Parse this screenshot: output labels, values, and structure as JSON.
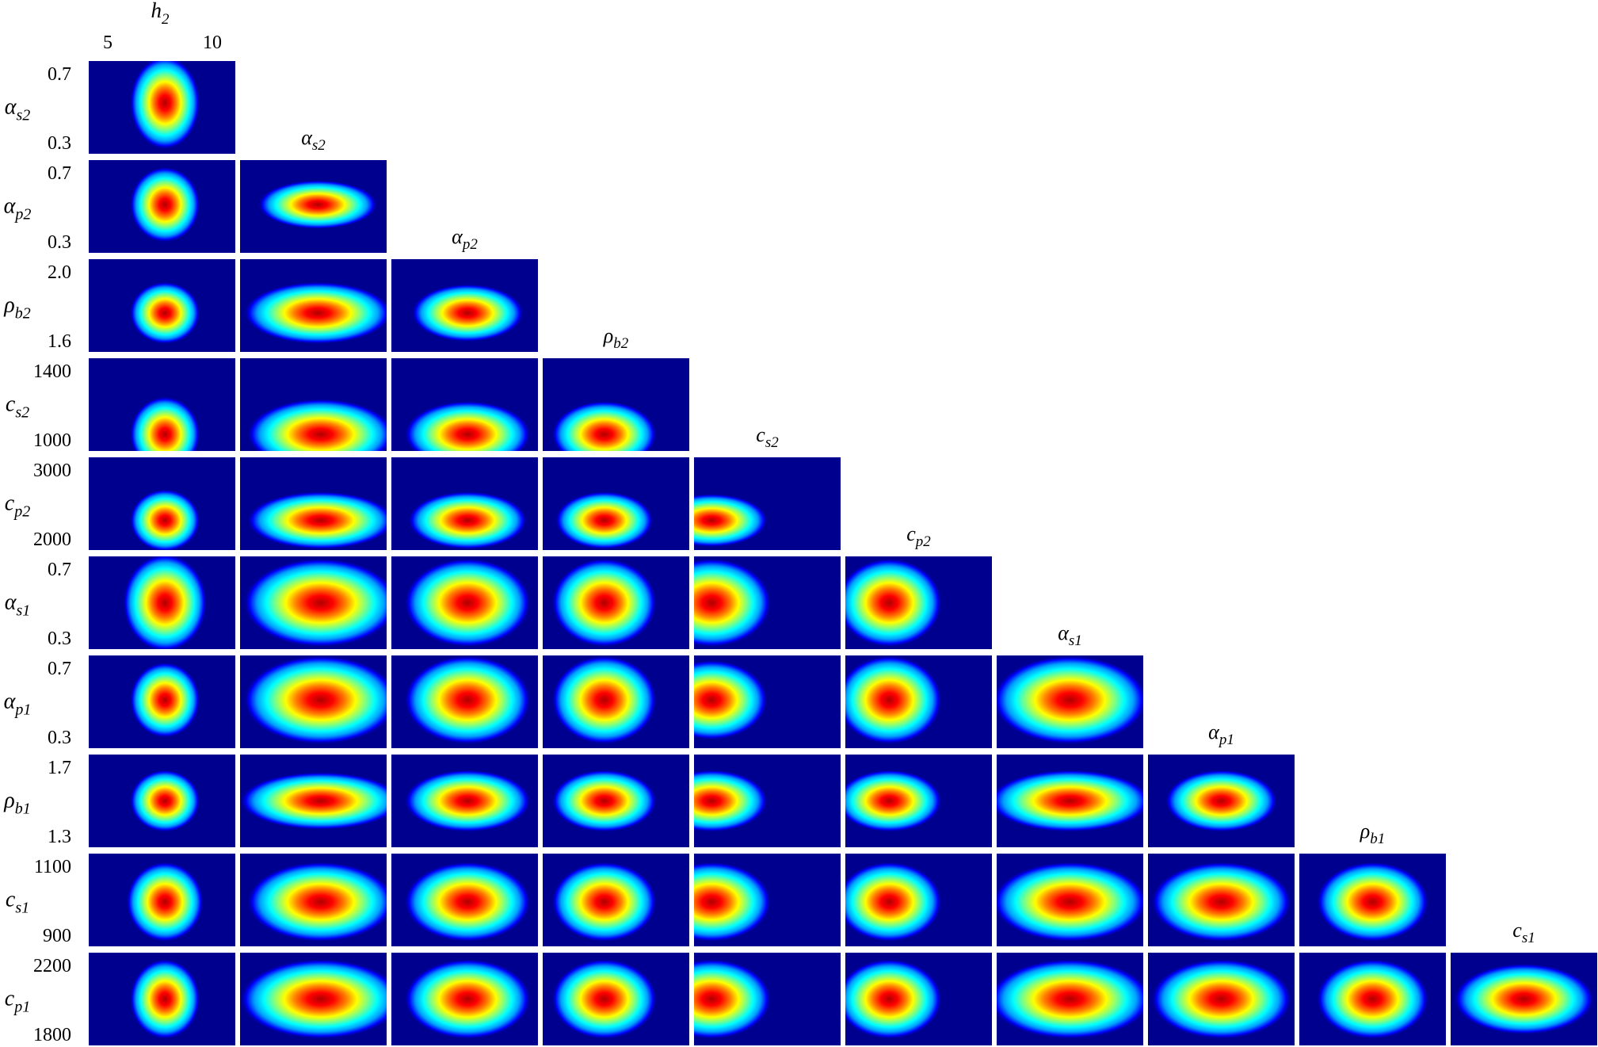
{
  "chart_data": {
    "type": "heatmap",
    "title": "",
    "layout": "lower-triangular corner plot of 2D posterior densities",
    "colormap": [
      "#00008f",
      "#0000ff",
      "#00a0ff",
      "#00ffff",
      "#80ff80",
      "#ffff00",
      "#ff8000",
      "#ff0000",
      "#b00000"
    ],
    "top_label": {
      "sym": "h",
      "sub": "2"
    },
    "top_ticks": [
      "5",
      "10"
    ],
    "rows": [
      {
        "sym": "α",
        "sub": "s2",
        "ticks": [
          "0.7",
          "0.3"
        ]
      },
      {
        "sym": "α",
        "sub": "p2",
        "ticks": [
          "0.7",
          "0.3"
        ]
      },
      {
        "sym": "ρ",
        "sub": "b2",
        "ticks": [
          "2.0",
          "1.6"
        ]
      },
      {
        "sym": "c",
        "sub": "s2",
        "ticks": [
          "1400",
          "1000"
        ]
      },
      {
        "sym": "c",
        "sub": "p2",
        "ticks": [
          "3000",
          "2000"
        ]
      },
      {
        "sym": "α",
        "sub": "s1",
        "ticks": [
          "0.7",
          "0.3"
        ]
      },
      {
        "sym": "α",
        "sub": "p1",
        "ticks": [
          "0.7",
          "0.3"
        ]
      },
      {
        "sym": "ρ",
        "sub": "b1",
        "ticks": [
          "1.7",
          "1.3"
        ]
      },
      {
        "sym": "c",
        "sub": "s1",
        "ticks": [
          "1100",
          "900"
        ]
      },
      {
        "sym": "c",
        "sub": "p1",
        "ticks": [
          "2200",
          "1800"
        ]
      }
    ],
    "column_titles": [
      {
        "sym": "α",
        "sub": "s2"
      },
      {
        "sym": "α",
        "sub": "p2"
      },
      {
        "sym": "ρ",
        "sub": "b2"
      },
      {
        "sym": "c",
        "sub": "s2"
      },
      {
        "sym": "c",
        "sub": "p2"
      },
      {
        "sym": "α",
        "sub": "s1"
      },
      {
        "sym": "α",
        "sub": "p1"
      },
      {
        "sym": "ρ",
        "sub": "b1"
      },
      {
        "sym": "c",
        "sub": "s1"
      }
    ],
    "panel_peaks": [
      [
        {
          "x": 0.52,
          "y": 0.45,
          "sx": 0.1,
          "sy": 0.21
        }
      ],
      [
        {
          "x": 0.52,
          "y": 0.48,
          "sx": 0.1,
          "sy": 0.17
        },
        {
          "x": 0.53,
          "y": 0.48,
          "sx": 0.17,
          "sy": 0.11
        }
      ],
      [
        {
          "x": 0.52,
          "y": 0.58,
          "sx": 0.1,
          "sy": 0.14
        },
        {
          "x": 0.53,
          "y": 0.58,
          "sx": 0.21,
          "sy": 0.14
        },
        {
          "x": 0.52,
          "y": 0.58,
          "sx": 0.16,
          "sy": 0.13
        }
      ],
      [
        {
          "x": 0.52,
          "y": 0.82,
          "sx": 0.1,
          "sy": 0.17
        },
        {
          "x": 0.55,
          "y": 0.82,
          "sx": 0.21,
          "sy": 0.16
        },
        {
          "x": 0.52,
          "y": 0.82,
          "sx": 0.18,
          "sy": 0.15
        },
        {
          "x": 0.42,
          "y": 0.82,
          "sx": 0.15,
          "sy": 0.15
        }
      ],
      [
        {
          "x": 0.52,
          "y": 0.68,
          "sx": 0.1,
          "sy": 0.14
        },
        {
          "x": 0.55,
          "y": 0.68,
          "sx": 0.21,
          "sy": 0.13
        },
        {
          "x": 0.52,
          "y": 0.68,
          "sx": 0.17,
          "sy": 0.13
        },
        {
          "x": 0.42,
          "y": 0.68,
          "sx": 0.14,
          "sy": 0.13
        },
        {
          "x": 0.12,
          "y": 0.68,
          "sx": 0.16,
          "sy": 0.12
        }
      ],
      [
        {
          "x": 0.52,
          "y": 0.5,
          "sx": 0.12,
          "sy": 0.22
        },
        {
          "x": 0.55,
          "y": 0.5,
          "sx": 0.22,
          "sy": 0.2
        },
        {
          "x": 0.52,
          "y": 0.5,
          "sx": 0.18,
          "sy": 0.2
        },
        {
          "x": 0.42,
          "y": 0.5,
          "sx": 0.15,
          "sy": 0.2
        },
        {
          "x": 0.12,
          "y": 0.5,
          "sx": 0.17,
          "sy": 0.2
        },
        {
          "x": 0.3,
          "y": 0.5,
          "sx": 0.15,
          "sy": 0.2
        }
      ],
      [
        {
          "x": 0.52,
          "y": 0.48,
          "sx": 0.1,
          "sy": 0.17
        },
        {
          "x": 0.55,
          "y": 0.48,
          "sx": 0.22,
          "sy": 0.2
        },
        {
          "x": 0.52,
          "y": 0.48,
          "sx": 0.18,
          "sy": 0.2
        },
        {
          "x": 0.42,
          "y": 0.48,
          "sx": 0.15,
          "sy": 0.2
        },
        {
          "x": 0.12,
          "y": 0.48,
          "sx": 0.16,
          "sy": 0.18
        },
        {
          "x": 0.3,
          "y": 0.48,
          "sx": 0.15,
          "sy": 0.2
        },
        {
          "x": 0.5,
          "y": 0.48,
          "sx": 0.22,
          "sy": 0.2
        }
      ],
      [
        {
          "x": 0.52,
          "y": 0.5,
          "sx": 0.1,
          "sy": 0.14
        },
        {
          "x": 0.55,
          "y": 0.5,
          "sx": 0.23,
          "sy": 0.13
        },
        {
          "x": 0.52,
          "y": 0.5,
          "sx": 0.18,
          "sy": 0.14
        },
        {
          "x": 0.42,
          "y": 0.5,
          "sx": 0.15,
          "sy": 0.14
        },
        {
          "x": 0.12,
          "y": 0.5,
          "sx": 0.16,
          "sy": 0.14
        },
        {
          "x": 0.3,
          "y": 0.5,
          "sx": 0.15,
          "sy": 0.14
        },
        {
          "x": 0.5,
          "y": 0.5,
          "sx": 0.23,
          "sy": 0.14
        },
        {
          "x": 0.5,
          "y": 0.5,
          "sx": 0.16,
          "sy": 0.14
        }
      ],
      [
        {
          "x": 0.52,
          "y": 0.52,
          "sx": 0.11,
          "sy": 0.18
        },
        {
          "x": 0.55,
          "y": 0.52,
          "sx": 0.21,
          "sy": 0.18
        },
        {
          "x": 0.52,
          "y": 0.52,
          "sx": 0.18,
          "sy": 0.18
        },
        {
          "x": 0.42,
          "y": 0.52,
          "sx": 0.15,
          "sy": 0.18
        },
        {
          "x": 0.12,
          "y": 0.52,
          "sx": 0.17,
          "sy": 0.18
        },
        {
          "x": 0.3,
          "y": 0.52,
          "sx": 0.15,
          "sy": 0.18
        },
        {
          "x": 0.5,
          "y": 0.52,
          "sx": 0.22,
          "sy": 0.18
        },
        {
          "x": 0.5,
          "y": 0.52,
          "sx": 0.2,
          "sy": 0.18
        },
        {
          "x": 0.5,
          "y": 0.52,
          "sx": 0.16,
          "sy": 0.18
        }
      ],
      [
        {
          "x": 0.52,
          "y": 0.5,
          "sx": 0.1,
          "sy": 0.18
        },
        {
          "x": 0.55,
          "y": 0.5,
          "sx": 0.23,
          "sy": 0.18
        },
        {
          "x": 0.52,
          "y": 0.5,
          "sx": 0.18,
          "sy": 0.18
        },
        {
          "x": 0.42,
          "y": 0.5,
          "sx": 0.15,
          "sy": 0.18
        },
        {
          "x": 0.12,
          "y": 0.5,
          "sx": 0.17,
          "sy": 0.18
        },
        {
          "x": 0.3,
          "y": 0.5,
          "sx": 0.15,
          "sy": 0.18
        },
        {
          "x": 0.5,
          "y": 0.5,
          "sx": 0.23,
          "sy": 0.18
        },
        {
          "x": 0.5,
          "y": 0.5,
          "sx": 0.2,
          "sy": 0.18
        },
        {
          "x": 0.5,
          "y": 0.5,
          "sx": 0.16,
          "sy": 0.18
        },
        {
          "x": 0.5,
          "y": 0.5,
          "sx": 0.2,
          "sy": 0.16
        }
      ]
    ]
  }
}
